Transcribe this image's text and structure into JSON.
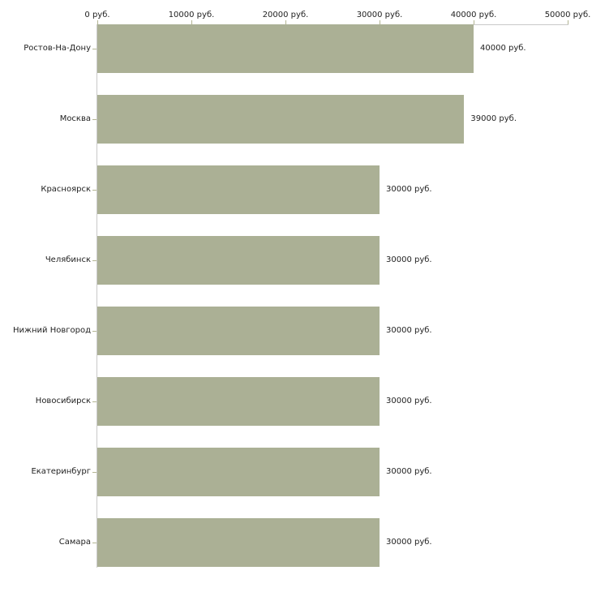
{
  "chart_data": {
    "type": "bar",
    "orientation": "horizontal",
    "title": "",
    "unit": "руб.",
    "categories": [
      "Ростов-На-Дону",
      "Москва",
      "Красноярск",
      "Челябинск",
      "Нижний Новгород",
      "Новосибирск",
      "Екатеринбург",
      "Самара"
    ],
    "values": [
      40000,
      39000,
      30000,
      30000,
      30000,
      30000,
      30000,
      30000
    ],
    "value_labels": [
      "40000 руб.",
      "39000 руб.",
      "30000 руб.",
      "30000 руб.",
      "30000 руб.",
      "30000 руб.",
      "30000 руб.",
      "30000 руб."
    ],
    "x_axis": {
      "position": "top",
      "min": 0,
      "max": 50000,
      "tick_values": [
        0,
        10000,
        20000,
        30000,
        40000,
        50000
      ],
      "tick_labels": [
        "0 руб.",
        "10000 руб.",
        "20000 руб.",
        "30000 руб.",
        "40000 руб.",
        "50000 руб."
      ]
    },
    "grid": false,
    "legend": "none",
    "colors": {
      "bar_fill": "#abb095",
      "axis_line": "#c9c9c9",
      "tick_mark": "#b3b593",
      "label_text": "#222222",
      "background": "#ffffff"
    }
  }
}
